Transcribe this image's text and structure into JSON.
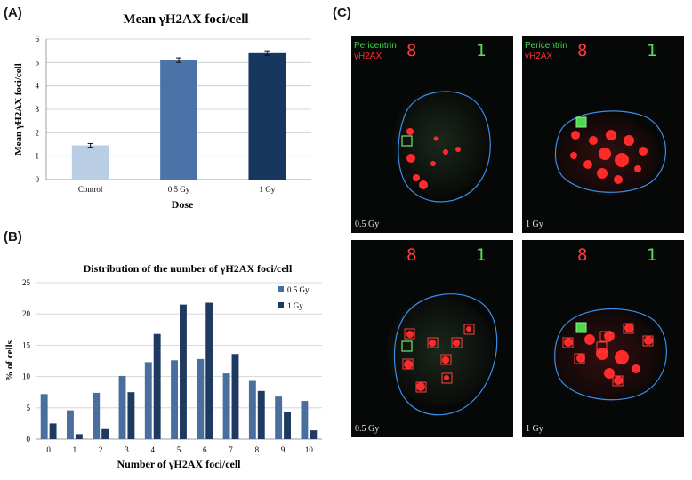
{
  "panels": {
    "a": "(A)",
    "b": "(B)",
    "c": "(C)"
  },
  "chart_data": [
    {
      "type": "bar",
      "title": "Mean γH2AX foci/cell",
      "xlabel": "Dose",
      "ylabel": "Mean γH2AX foci/cell",
      "categories": [
        "Control",
        "0.5 Gy",
        "1 Gy"
      ],
      "values": [
        1.46,
        5.1,
        5.4
      ],
      "errors": [
        0.08,
        0.1,
        0.1
      ],
      "colors": [
        "#b9cde5",
        "#4a73a8",
        "#17375e"
      ],
      "ylim": [
        0,
        6
      ],
      "yticks": [
        "0",
        "1",
        "2",
        "3",
        "4",
        "5",
        "6"
      ],
      "grid": true
    },
    {
      "type": "bar",
      "title": "Distribution of the number of γH2AX foci/cell",
      "xlabel": "Number of γH2AX foci/cell",
      "ylabel": "% of cells",
      "categories": [
        "0",
        "1",
        "2",
        "3",
        "4",
        "5",
        "6",
        "7",
        "8",
        "9",
        "10"
      ],
      "series": [
        {
          "name": "0.5 Gy",
          "color": "#4a6f9e",
          "values": [
            7.2,
            4.6,
            7.4,
            10.1,
            12.3,
            12.6,
            12.8,
            10.5,
            9.3,
            6.8,
            6.1
          ]
        },
        {
          "name": "1 Gy",
          "color": "#1f3a60",
          "values": [
            2.5,
            0.8,
            1.6,
            7.5,
            16.8,
            21.5,
            21.8,
            13.6,
            7.7,
            4.4,
            1.4
          ]
        }
      ],
      "ylim": [
        0,
        25
      ],
      "yticks": [
        "0",
        "5",
        "10",
        "15",
        "20",
        "25"
      ],
      "legend": "top-right",
      "grid": true
    }
  ],
  "micrographs": [
    {
      "legend_green": "Pericentrin",
      "legend_red": "γH2AX",
      "count_red": "8",
      "count_green": "1",
      "dose": "0.5 Gy"
    },
    {
      "legend_green": "Pericentrin",
      "legend_red": "γH2AX",
      "count_red": "8",
      "count_green": "1",
      "dose": "1 Gy"
    },
    {
      "legend_green": "",
      "legend_red": "",
      "count_red": "8",
      "count_green": "1",
      "dose": "0.5 Gy"
    },
    {
      "legend_green": "",
      "legend_red": "",
      "count_red": "8",
      "count_green": "1",
      "dose": "1 Gy"
    }
  ]
}
